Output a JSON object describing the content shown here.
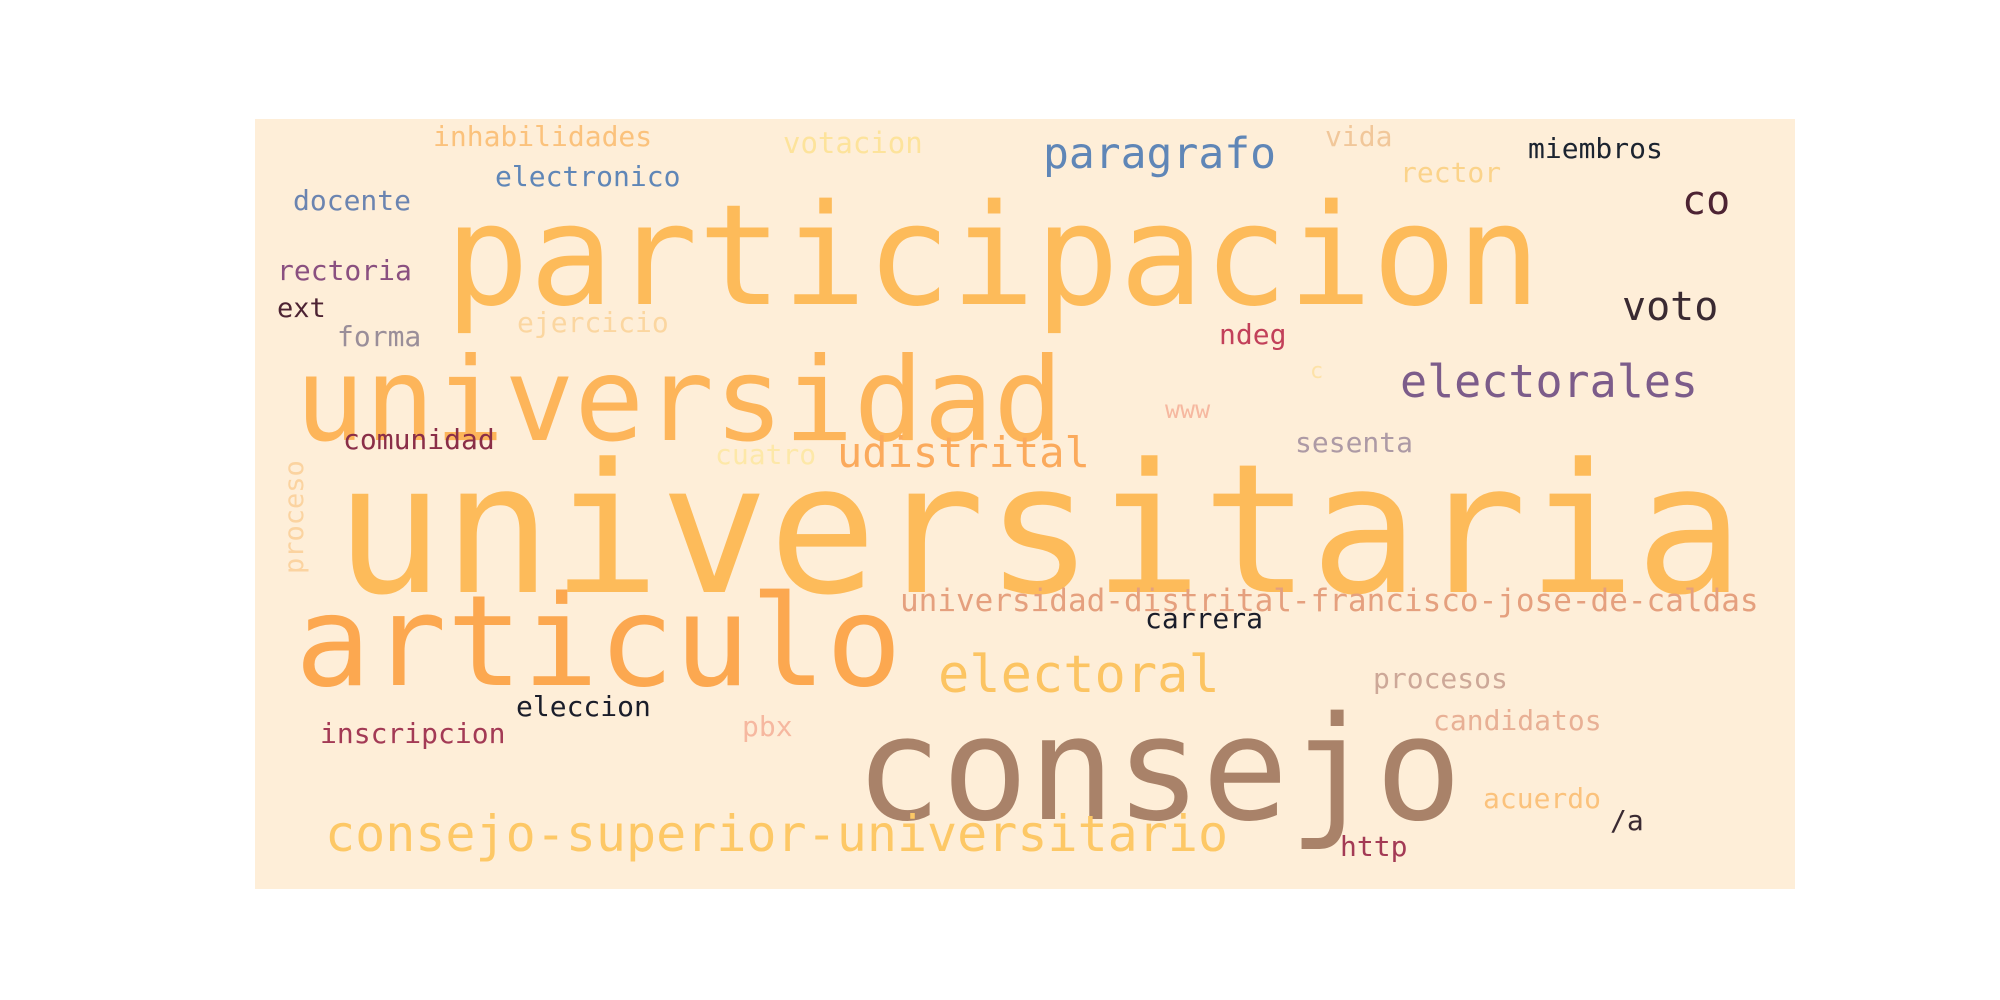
{
  "word_cloud": {
    "background": "#feeed8",
    "words": [
      {
        "text": "universitaria",
        "color": "#fdbb5a"
      },
      {
        "text": "participacion",
        "color": "#fdbb5a"
      },
      {
        "text": "universidad",
        "color": "#fdb55a"
      },
      {
        "text": "consejo",
        "color": "#a98269"
      },
      {
        "text": "articulo",
        "color": "#fca850"
      },
      {
        "text": "consejo-superior-universitario",
        "color": "#fdc866"
      },
      {
        "text": "electoral",
        "color": "#fcc462"
      },
      {
        "text": "electorales",
        "color": "#7c5c8a"
      },
      {
        "text": "paragrafo",
        "color": "#5f86b7"
      },
      {
        "text": "udistrital",
        "color": "#fbaa5c"
      },
      {
        "text": "universidad-distrital-francisco-jose-de-caldas",
        "color": "#e5a07e"
      },
      {
        "text": "voto",
        "color": "#3a2a32"
      },
      {
        "text": "co",
        "color": "#4d2333"
      },
      {
        "text": "miembros",
        "color": "#1c2430"
      },
      {
        "text": "inhabilidades",
        "color": "#fbc27c"
      },
      {
        "text": "votacion",
        "color": "#fde39b"
      },
      {
        "text": "vida",
        "color": "#f1c79a"
      },
      {
        "text": "rector",
        "color": "#fbd38a"
      },
      {
        "text": "electronico",
        "color": "#5f86b7"
      },
      {
        "text": "docente",
        "color": "#6b84b0"
      },
      {
        "text": "rectoria",
        "color": "#8a5080"
      },
      {
        "text": "ext",
        "color": "#4d2333"
      },
      {
        "text": "forma",
        "color": "#9a8e99"
      },
      {
        "text": "ejercicio",
        "color": "#fbd6a0"
      },
      {
        "text": "ndeg",
        "color": "#c2405a"
      },
      {
        "text": "c",
        "color": "#fde2a8"
      },
      {
        "text": "www",
        "color": "#f6b8a0"
      },
      {
        "text": "comunidad",
        "color": "#8a2e48"
      },
      {
        "text": "cuatro",
        "color": "#fde8a8"
      },
      {
        "text": "sesenta",
        "color": "#ad9aa5"
      },
      {
        "text": "proceso",
        "color": "#fbd3a0"
      },
      {
        "text": "carrera",
        "color": "#1a1d2a"
      },
      {
        "text": "procesos",
        "color": "#cda898"
      },
      {
        "text": "eleccion",
        "color": "#1a1d2a"
      },
      {
        "text": "pbx",
        "color": "#f6b8a0"
      },
      {
        "text": "candidatos",
        "color": "#e8b095"
      },
      {
        "text": "inscripcion",
        "color": "#a33a55"
      },
      {
        "text": "acuerdo",
        "color": "#fbc27c"
      },
      {
        "text": "/a",
        "color": "#3a2a32"
      },
      {
        "text": "http",
        "color": "#a33a55"
      }
    ]
  }
}
